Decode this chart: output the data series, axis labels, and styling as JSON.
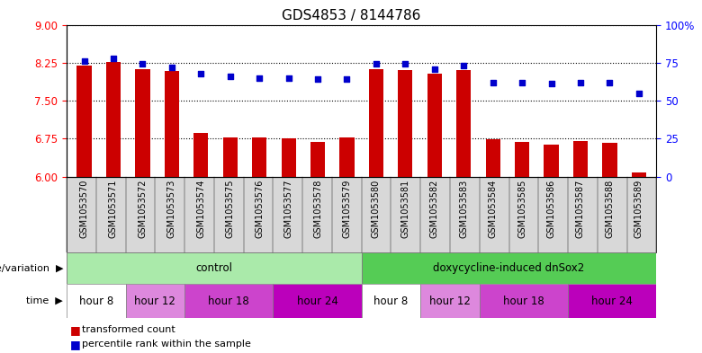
{
  "title": "GDS4853 / 8144786",
  "samples": [
    "GSM1053570",
    "GSM1053571",
    "GSM1053572",
    "GSM1053573",
    "GSM1053574",
    "GSM1053575",
    "GSM1053576",
    "GSM1053577",
    "GSM1053578",
    "GSM1053579",
    "GSM1053580",
    "GSM1053581",
    "GSM1053582",
    "GSM1053583",
    "GSM1053584",
    "GSM1053585",
    "GSM1053586",
    "GSM1053587",
    "GSM1053588",
    "GSM1053589"
  ],
  "bar_values": [
    8.19,
    8.26,
    8.13,
    8.08,
    6.86,
    6.78,
    6.78,
    6.75,
    6.69,
    6.77,
    8.13,
    8.11,
    8.04,
    8.11,
    6.74,
    6.69,
    6.63,
    6.71,
    6.67,
    6.08
  ],
  "dot_values": [
    76,
    78,
    74,
    72,
    68,
    66,
    65,
    65,
    64,
    64,
    74,
    74,
    71,
    73,
    62,
    62,
    61,
    62,
    62,
    55
  ],
  "ylim_left": [
    6,
    9
  ],
  "ylim_right": [
    0,
    100
  ],
  "yticks_left": [
    6,
    6.75,
    7.5,
    8.25,
    9
  ],
  "yticks_right": [
    0,
    25,
    50,
    75,
    100
  ],
  "ytick_labels_right": [
    "0",
    "25",
    "50",
    "75",
    "100%"
  ],
  "bar_color": "#cc0000",
  "dot_color": "#0000cc",
  "bar_width": 0.5,
  "background_color": "#ffffff",
  "title_fontsize": 11,
  "tick_fontsize": 8.5,
  "sample_fontsize": 7,
  "ctrl_color": "#aaeaaa",
  "dox_color": "#55cc55",
  "time_colors": {
    "hour 8": "#ffffff",
    "hour 12": "#dd88dd",
    "hour 18": "#cc44cc",
    "hour 24": "#bb00bb"
  },
  "time_groups": [
    [
      "hour 8",
      0,
      2
    ],
    [
      "hour 12",
      2,
      4
    ],
    [
      "hour 18",
      4,
      7
    ],
    [
      "hour 24",
      7,
      10
    ],
    [
      "hour 8",
      10,
      12
    ],
    [
      "hour 12",
      12,
      14
    ],
    [
      "hour 18",
      14,
      17
    ],
    [
      "hour 24",
      17,
      20
    ]
  ]
}
